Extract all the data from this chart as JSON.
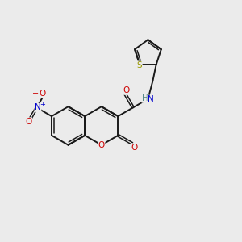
{
  "bg": "#ebebeb",
  "bc": "#1a1a1a",
  "Oc": "#cc0000",
  "Nc": "#0000cc",
  "Sc": "#999900",
  "Hc": "#558888",
  "lw": 1.4,
  "lw2": 1.1,
  "fs": 7.5,
  "figsize": [
    3.0,
    3.0
  ],
  "dpi": 100,
  "xlim": [
    0,
    10
  ],
  "ylim": [
    0,
    10
  ]
}
